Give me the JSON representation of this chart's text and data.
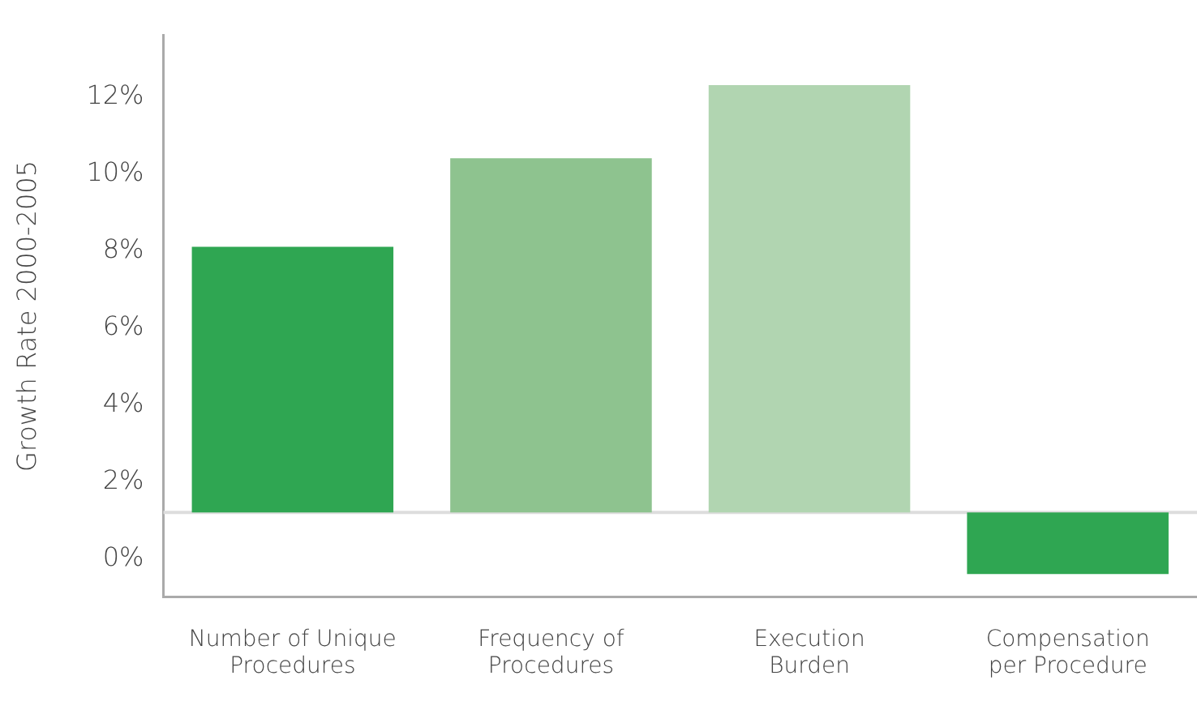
{
  "chart_data": {
    "type": "bar",
    "ylabel": "Growth Rate 2000-2005",
    "categories": [
      "Number of Unique Procedures",
      "Frequency of Procedures",
      "Execution Burden",
      "Compensation per Procedure"
    ],
    "base": [
      1.2,
      1.2,
      1.2,
      1.2
    ],
    "values": [
      6.9,
      9.2,
      11.1,
      -1.6
    ],
    "colors": [
      "#2fa652",
      "#8ec38f",
      "#b1d5b1",
      "#2fa652"
    ],
    "ylim": [
      -1,
      13.6
    ],
    "yticks": [
      {
        "value": 0,
        "label": "0%"
      },
      {
        "value": 2,
        "label": "2%"
      },
      {
        "value": 4,
        "label": "4%"
      },
      {
        "value": 6,
        "label": "6%"
      },
      {
        "value": 8,
        "label": "8%"
      },
      {
        "value": 10,
        "label": "10%"
      },
      {
        "value": 12,
        "label": "12%"
      }
    ],
    "ref_lines": [
      {
        "axis": "y",
        "value": 1.2,
        "color": "#dddddd"
      }
    ],
    "grid": false,
    "legend": false
  }
}
